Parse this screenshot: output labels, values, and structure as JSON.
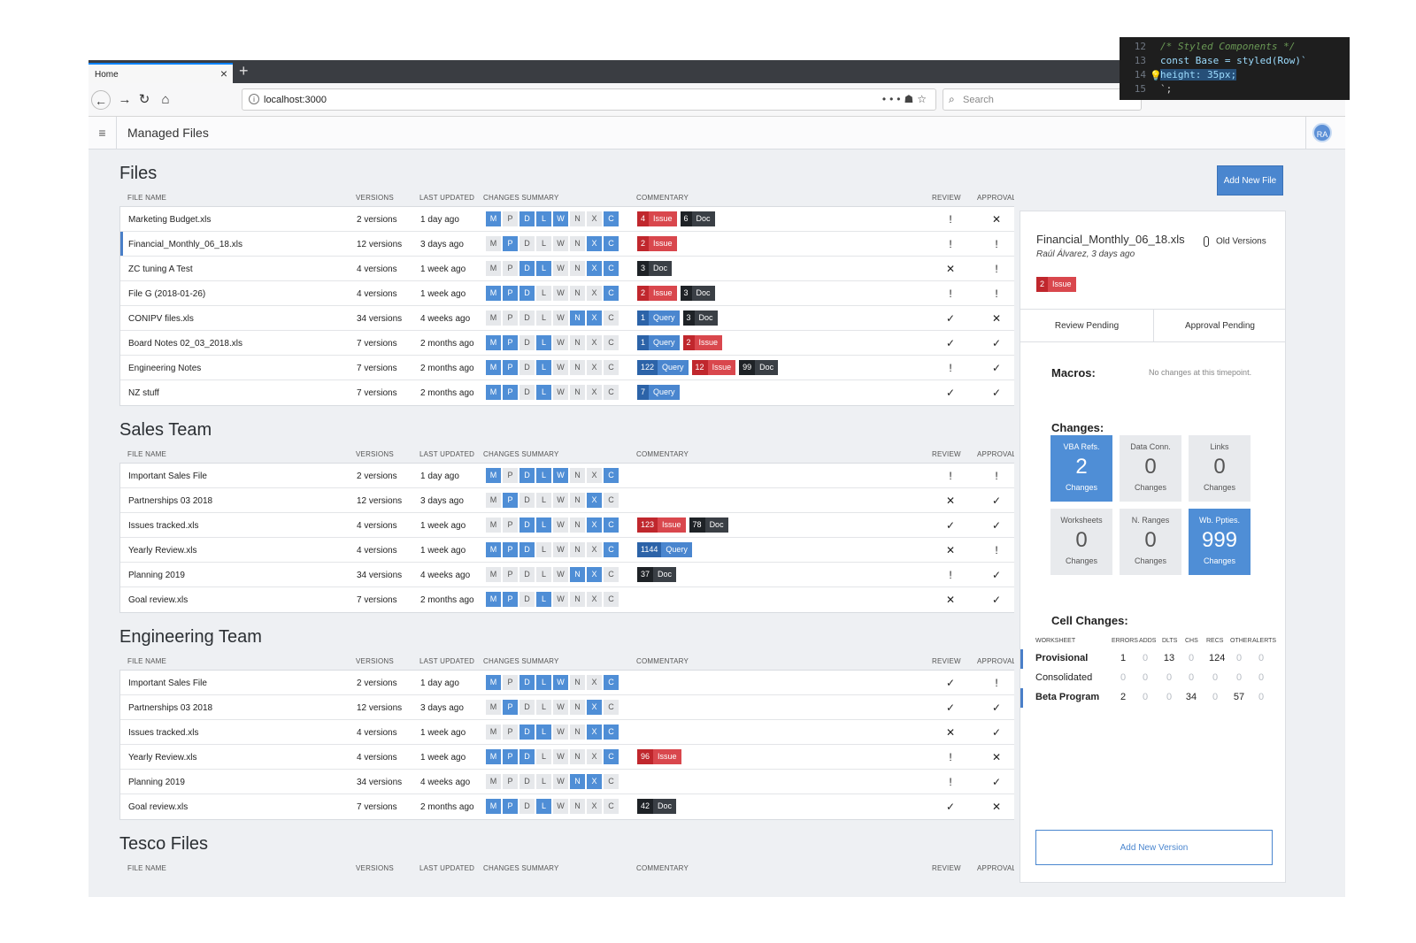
{
  "browser": {
    "tab_title": "Home",
    "url": "localhost:3000",
    "search_placeholder": "Search"
  },
  "app": {
    "title": "Managed Files",
    "avatar_initials": "RA"
  },
  "columns": {
    "name": "FILE NAME",
    "versions": "VERSIONS",
    "updated": "LAST UPDATED",
    "summary": "CHANGES SUMMARY",
    "commentary": "COMMENTARY",
    "review": "REVIEW",
    "approval": "APPROVAL"
  },
  "summary_letters": [
    "M",
    "P",
    "D",
    "L",
    "W",
    "N",
    "X",
    "C"
  ],
  "sections": [
    {
      "title": "Files",
      "rows": [
        {
          "name": "Marketing Budget.xls",
          "versions": "2 versions",
          "updated": "1 day ago",
          "on": [
            1,
            0,
            1,
            1,
            1,
            0,
            0,
            1
          ],
          "comments": [
            {
              "type": "issue",
              "n": "4",
              "label": "Issue"
            },
            {
              "type": "doc",
              "n": "6",
              "label": "Doc"
            }
          ],
          "review": "!",
          "approval": "x"
        },
        {
          "name": "Financial_Monthly_06_18.xls",
          "versions": "12 versions",
          "updated": "3 days ago",
          "on": [
            0,
            1,
            0,
            0,
            0,
            0,
            1,
            1
          ],
          "comments": [
            {
              "type": "issue",
              "n": "2",
              "label": "Issue"
            }
          ],
          "review": "!",
          "approval": "!",
          "selected": true
        },
        {
          "name": "ZC tuning A Test",
          "versions": "4 versions",
          "updated": "1 week ago",
          "on": [
            0,
            0,
            1,
            1,
            0,
            0,
            1,
            1
          ],
          "comments": [
            {
              "type": "doc",
              "n": "3",
              "label": "Doc"
            }
          ],
          "review": "x",
          "approval": "!"
        },
        {
          "name": "File G (2018-01-26)",
          "versions": "4 versions",
          "updated": "1 week ago",
          "on": [
            1,
            1,
            1,
            0,
            0,
            0,
            0,
            1
          ],
          "comments": [
            {
              "type": "issue",
              "n": "2",
              "label": "Issue"
            },
            {
              "type": "doc",
              "n": "3",
              "label": "Doc"
            }
          ],
          "review": "!",
          "approval": "!"
        },
        {
          "name": "CONIPV files.xls",
          "versions": "34 versions",
          "updated": "4 weeks ago",
          "on": [
            0,
            0,
            0,
            0,
            0,
            1,
            1,
            0
          ],
          "comments": [
            {
              "type": "query",
              "n": "1",
              "label": "Query"
            },
            {
              "type": "doc",
              "n": "3",
              "label": "Doc"
            }
          ],
          "review": "v",
          "approval": "x"
        },
        {
          "name": "Board Notes 02_03_2018.xls",
          "versions": "7 versions",
          "updated": "2 months ago",
          "on": [
            1,
            1,
            0,
            1,
            0,
            0,
            0,
            0
          ],
          "comments": [
            {
              "type": "query",
              "n": "1",
              "label": "Query"
            },
            {
              "type": "issue",
              "n": "2",
              "label": "Issue"
            }
          ],
          "review": "v",
          "approval": "v"
        },
        {
          "name": "Engineering Notes",
          "versions": "7 versions",
          "updated": "2 months ago",
          "on": [
            1,
            1,
            0,
            1,
            0,
            0,
            0,
            0
          ],
          "comments": [
            {
              "type": "query",
              "n": "122",
              "label": "Query"
            },
            {
              "type": "issue",
              "n": "12",
              "label": "Issue"
            },
            {
              "type": "doc",
              "n": "99",
              "label": "Doc"
            }
          ],
          "review": "!",
          "approval": "v"
        },
        {
          "name": "NZ stuff",
          "versions": "7 versions",
          "updated": "2 months ago",
          "on": [
            1,
            1,
            0,
            1,
            0,
            0,
            0,
            0
          ],
          "comments": [
            {
              "type": "query",
              "n": "7",
              "label": "Query"
            }
          ],
          "review": "v",
          "approval": "v"
        }
      ]
    },
    {
      "title": "Sales Team",
      "rows": [
        {
          "name": "Important Sales File",
          "versions": "2 versions",
          "updated": "1 day ago",
          "on": [
            1,
            0,
            1,
            1,
            1,
            0,
            0,
            1
          ],
          "comments": [],
          "review": "!",
          "approval": "!"
        },
        {
          "name": "Partnerships 03 2018",
          "versions": "12 versions",
          "updated": "3 days ago",
          "on": [
            0,
            1,
            0,
            0,
            0,
            0,
            1,
            0
          ],
          "comments": [],
          "review": "x",
          "approval": "v"
        },
        {
          "name": "Issues tracked.xls",
          "versions": "4 versions",
          "updated": "1 week ago",
          "on": [
            0,
            0,
            1,
            1,
            0,
            0,
            1,
            1
          ],
          "comments": [
            {
              "type": "issue",
              "n": "123",
              "label": "Issue"
            },
            {
              "type": "doc",
              "n": "78",
              "label": "Doc"
            }
          ],
          "review": "v",
          "approval": "v"
        },
        {
          "name": "Yearly Review.xls",
          "versions": "4 versions",
          "updated": "1 week ago",
          "on": [
            1,
            1,
            1,
            0,
            0,
            0,
            0,
            1
          ],
          "comments": [
            {
              "type": "query",
              "n": "1144",
              "label": "Query"
            }
          ],
          "review": "x",
          "approval": "!"
        },
        {
          "name": "Planning 2019",
          "versions": "34 versions",
          "updated": "4 weeks ago",
          "on": [
            0,
            0,
            0,
            0,
            0,
            1,
            1,
            0
          ],
          "comments": [
            {
              "type": "doc",
              "n": "37",
              "label": "Doc"
            }
          ],
          "review": "!",
          "approval": "v"
        },
        {
          "name": "Goal review.xls",
          "versions": "7 versions",
          "updated": "2 months ago",
          "on": [
            1,
            1,
            0,
            1,
            0,
            0,
            0,
            0
          ],
          "comments": [],
          "review": "x",
          "approval": "v"
        }
      ]
    },
    {
      "title": "Engineering Team",
      "rows": [
        {
          "name": "Important Sales File",
          "versions": "2 versions",
          "updated": "1 day ago",
          "on": [
            1,
            0,
            1,
            1,
            1,
            0,
            0,
            1
          ],
          "comments": [],
          "review": "v",
          "approval": "!"
        },
        {
          "name": "Partnerships 03 2018",
          "versions": "12 versions",
          "updated": "3 days ago",
          "on": [
            0,
            1,
            0,
            0,
            0,
            0,
            1,
            0
          ],
          "comments": [],
          "review": "v",
          "approval": "v"
        },
        {
          "name": "Issues tracked.xls",
          "versions": "4 versions",
          "updated": "1 week ago",
          "on": [
            0,
            0,
            1,
            1,
            0,
            0,
            1,
            1
          ],
          "comments": [],
          "review": "x",
          "approval": "v"
        },
        {
          "name": "Yearly Review.xls",
          "versions": "4 versions",
          "updated": "1 week ago",
          "on": [
            1,
            1,
            1,
            0,
            0,
            0,
            0,
            1
          ],
          "comments": [
            {
              "type": "issue",
              "n": "96",
              "label": "Issue"
            }
          ],
          "review": "!",
          "approval": "x"
        },
        {
          "name": "Planning 2019",
          "versions": "34 versions",
          "updated": "4 weeks ago",
          "on": [
            0,
            0,
            0,
            0,
            0,
            1,
            1,
            0
          ],
          "comments": [],
          "review": "!",
          "approval": "v"
        },
        {
          "name": "Goal review.xls",
          "versions": "7 versions",
          "updated": "2 months ago",
          "on": [
            1,
            1,
            0,
            1,
            0,
            0,
            0,
            0
          ],
          "comments": [
            {
              "type": "doc",
              "n": "42",
              "label": "Doc"
            }
          ],
          "review": "v",
          "approval": "x"
        }
      ]
    },
    {
      "title": "Tesco Files",
      "rows": []
    }
  ],
  "side": {
    "add_file_label": "Add New File",
    "file_name": "Financial_Monthly_06_18.xls",
    "file_meta": "Raúl Álvarez, 3 days ago",
    "old_versions_label": "Old Versions",
    "badge": {
      "type": "issue",
      "n": "2",
      "label": "Issue"
    },
    "tab_review": "Review Pending",
    "tab_approval": "Approval Pending",
    "macros_label": "Macros:",
    "macros_note": "No changes at this timepoint.",
    "changes_label": "Changes:",
    "tiles": [
      {
        "label": "VBA Refs.",
        "value": "2",
        "sub": "Changes",
        "on": true
      },
      {
        "label": "Data Conn.",
        "value": "0",
        "sub": "Changes",
        "on": false
      },
      {
        "label": "Links",
        "value": "0",
        "sub": "Changes",
        "on": false
      },
      {
        "label": "Worksheets",
        "value": "0",
        "sub": "Changes",
        "on": false
      },
      {
        "label": "N. Ranges",
        "value": "0",
        "sub": "Changes",
        "on": false
      },
      {
        "label": "Wb. Ppties.",
        "value": "999",
        "sub": "Changes",
        "on": true
      }
    ],
    "cell_changes_label": "Cell Changes:",
    "cell_headers": [
      "WORKSHEET",
      "ERRORS",
      "ADDS",
      "DLTS",
      "CHS",
      "RECS",
      "OTHER",
      "ALERTS"
    ],
    "cell_rows": [
      {
        "name": "Provisional",
        "bold": true,
        "marked": true,
        "values": [
          "1",
          "0",
          "13",
          "0",
          "124",
          "0",
          "0"
        ]
      },
      {
        "name": "Consolidated",
        "bold": false,
        "marked": false,
        "values": [
          "0",
          "0",
          "0",
          "0",
          "0",
          "0",
          "0"
        ]
      },
      {
        "name": "Beta Program",
        "bold": true,
        "marked": true,
        "values": [
          "2",
          "0",
          "0",
          "34",
          "0",
          "57",
          "0"
        ]
      }
    ],
    "add_version_label": "Add New Version"
  },
  "code_overlay": {
    "lines": [
      {
        "num": "12",
        "text": "/* Styled Components */"
      },
      {
        "num": "13",
        "text": "const Base = styled(Row)`"
      },
      {
        "num": "14",
        "text": "height: 35px;"
      },
      {
        "num": "15",
        "text": "`;"
      }
    ]
  }
}
